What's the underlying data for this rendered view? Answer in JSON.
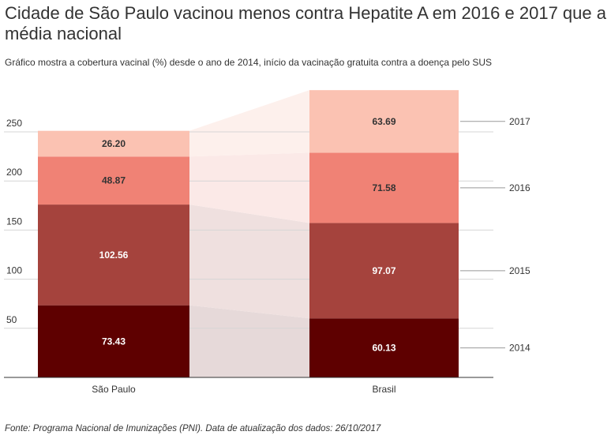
{
  "title": "Cidade de São Paulo vacinou menos contra Hepatite A em 2016 e 2017 que a média nacional",
  "subtitle": "Gráfico mostra a cobertura vacinal (%) desde o ano de 2014, início da vacinação gratuita contra a doença pelo SUS",
  "source": "Fonte: Programa Nacional de Imunizações (PNI). Data de atualização dos dados: 26/10/2017",
  "chart_data": {
    "type": "bar",
    "stacked": true,
    "categories": [
      "São Paulo",
      "Brasil"
    ],
    "series": [
      {
        "name": "2014",
        "values": [
          73.43,
          60.13
        ],
        "color": "#5e0000"
      },
      {
        "name": "2015",
        "values": [
          102.56,
          97.07
        ],
        "color": "#a5433d"
      },
      {
        "name": "2016",
        "values": [
          48.87,
          71.58
        ],
        "color": "#f08275"
      },
      {
        "name": "2017",
        "values": [
          26.2,
          63.69
        ],
        "color": "#fbc2b2"
      }
    ],
    "data_labels": [
      [
        "73.43",
        "60.13"
      ],
      [
        "102.56",
        "97.07"
      ],
      [
        "48.87",
        "71.58"
      ],
      [
        "26.20",
        "63.69"
      ]
    ],
    "yticks": [
      "50",
      "100",
      "150",
      "200",
      "250"
    ],
    "ylim": [
      0,
      300
    ],
    "grid": true,
    "legend": "right, labels beside Brasil bar"
  }
}
